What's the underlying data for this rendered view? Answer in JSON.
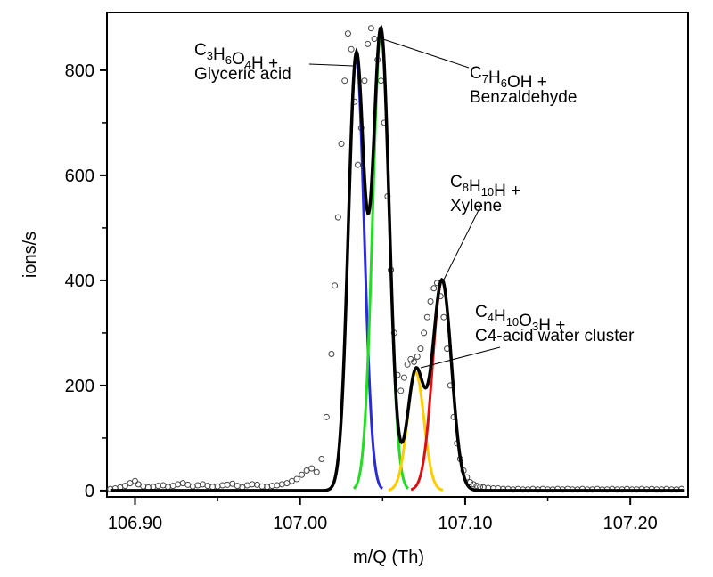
{
  "chart_data": {
    "type": "line",
    "xlabel": "m/Q (Th)",
    "ylabel": "ions/s",
    "xlim": [
      106.883,
      107.235
    ],
    "ylim": [
      -12,
      910
    ],
    "x_ticks": [
      "106.90",
      "107.00",
      "107.10",
      "107.20"
    ],
    "x_tick_values": [
      106.9,
      107.0,
      107.1,
      107.2
    ],
    "y_ticks": [
      "0",
      "200",
      "400",
      "600",
      "800"
    ],
    "y_tick_values": [
      0,
      200,
      400,
      600,
      800
    ],
    "grid": false,
    "peaks": [
      {
        "label_lines": [
          "C3H6O4H +",
          "Glyceric acid"
        ],
        "color": "#2b2bd6",
        "center": 107.034,
        "height": 825,
        "sigma": 0.0048
      },
      {
        "label_lines": [
          "C7H6OH +",
          "Benzaldehyde"
        ],
        "color": "#22dd22",
        "center": 107.049,
        "height": 875,
        "sigma": 0.005
      },
      {
        "label_lines": [
          "C4H10O3H +",
          "C4-acid water cluster"
        ],
        "color": "#ffcc00",
        "center": 107.07,
        "height": 225,
        "sigma": 0.005
      },
      {
        "label_lines": [
          "C8H10H +",
          "Xylene"
        ],
        "color": "#dd1111",
        "center": 107.086,
        "height": 400,
        "sigma": 0.0057
      }
    ],
    "sum_series": {
      "name": "",
      "color": "#000000"
    },
    "measured_points": {
      "x": [
        106.885,
        106.888,
        106.891,
        106.894,
        106.897,
        106.9,
        106.902,
        106.905,
        106.908,
        106.911,
        106.914,
        106.917,
        106.92,
        106.923,
        106.926,
        106.929,
        106.932,
        106.935,
        106.938,
        106.941,
        106.944,
        106.947,
        106.95,
        106.953,
        106.956,
        106.959,
        106.962,
        106.965,
        106.968,
        106.971,
        106.974,
        106.977,
        106.98,
        106.983,
        106.986,
        106.989,
        106.992,
        106.995,
        106.998,
        107.001,
        107.004,
        107.007,
        107.01,
        107.013,
        107.016,
        107.019,
        107.021,
        107.023,
        107.025,
        107.027,
        107.029,
        107.031,
        107.033,
        107.035,
        107.037,
        107.039,
        107.041,
        107.043,
        107.045,
        107.047,
        107.049,
        107.051,
        107.053,
        107.055,
        107.057,
        107.059,
        107.061,
        107.063,
        107.065,
        107.067,
        107.069,
        107.071,
        107.073,
        107.075,
        107.077,
        107.079,
        107.081,
        107.083,
        107.085,
        107.087,
        107.089,
        107.091,
        107.093,
        107.095,
        107.097,
        107.099,
        107.101,
        107.103,
        107.105,
        107.107,
        107.109,
        107.111,
        107.114,
        107.117,
        107.12,
        107.123,
        107.126,
        107.129,
        107.132,
        107.135,
        107.138,
        107.141,
        107.144,
        107.147,
        107.15,
        107.153,
        107.156,
        107.159,
        107.162,
        107.165,
        107.168,
        107.171,
        107.174,
        107.177,
        107.18,
        107.183,
        107.186,
        107.189,
        107.192,
        107.195,
        107.198,
        107.201,
        107.204,
        107.207,
        107.21,
        107.213,
        107.216,
        107.219,
        107.222,
        107.225,
        107.228,
        107.231
      ],
      "y": [
        3,
        4,
        6,
        9,
        14,
        18,
        12,
        8,
        6,
        7,
        9,
        10,
        7,
        9,
        12,
        14,
        11,
        8,
        10,
        12,
        9,
        7,
        8,
        10,
        11,
        13,
        9,
        6,
        10,
        12,
        11,
        8,
        7,
        9,
        10,
        12,
        14,
        18,
        22,
        30,
        38,
        42,
        35,
        60,
        140,
        260,
        390,
        520,
        660,
        780,
        870,
        840,
        740,
        620,
        690,
        780,
        850,
        880,
        860,
        820,
        780,
        700,
        560,
        420,
        300,
        220,
        190,
        215,
        240,
        250,
        245,
        255,
        270,
        300,
        330,
        360,
        385,
        395,
        370,
        330,
        270,
        200,
        140,
        90,
        60,
        38,
        25,
        16,
        12,
        9,
        7,
        6,
        5,
        4,
        4,
        3,
        3,
        2,
        3,
        2,
        2,
        3,
        2,
        3,
        2,
        2,
        3,
        2,
        3,
        2,
        2,
        3,
        2,
        2,
        3,
        2,
        2,
        3,
        2,
        2,
        3,
        2,
        2,
        3,
        2,
        3,
        2,
        2,
        3,
        2,
        2,
        3
      ]
    },
    "annotations": [
      {
        "lines": [
          [
            [
              "C",
              ""
            ],
            [
              "3",
              "sub"
            ],
            [
              "H",
              ""
            ],
            [
              "6",
              "sub"
            ],
            [
              "O",
              ""
            ],
            [
              "4",
              "sub"
            ],
            [
              "H +",
              ""
            ]
          ],
          [
            [
              "Glyceric acid",
              ""
            ]
          ]
        ]
      },
      {
        "lines": [
          [
            [
              "C",
              ""
            ],
            [
              "7",
              "sub"
            ],
            [
              "H",
              ""
            ],
            [
              "6",
              "sub"
            ],
            [
              "OH +",
              ""
            ]
          ],
          [
            [
              "Benzaldehyde",
              ""
            ]
          ]
        ]
      },
      {
        "lines": [
          [
            [
              "C",
              ""
            ],
            [
              "8",
              "sub"
            ],
            [
              "H",
              ""
            ],
            [
              "10",
              "sub"
            ],
            [
              "H +",
              ""
            ]
          ],
          [
            [
              "Xylene",
              ""
            ]
          ]
        ]
      },
      {
        "lines": [
          [
            [
              "C",
              ""
            ],
            [
              "4",
              "sub"
            ],
            [
              "H",
              ""
            ],
            [
              "10",
              "sub"
            ],
            [
              "O",
              ""
            ],
            [
              "3",
              "sub"
            ],
            [
              "H +",
              ""
            ]
          ],
          [
            [
              "C4-acid water cluster",
              ""
            ]
          ]
        ]
      }
    ]
  }
}
